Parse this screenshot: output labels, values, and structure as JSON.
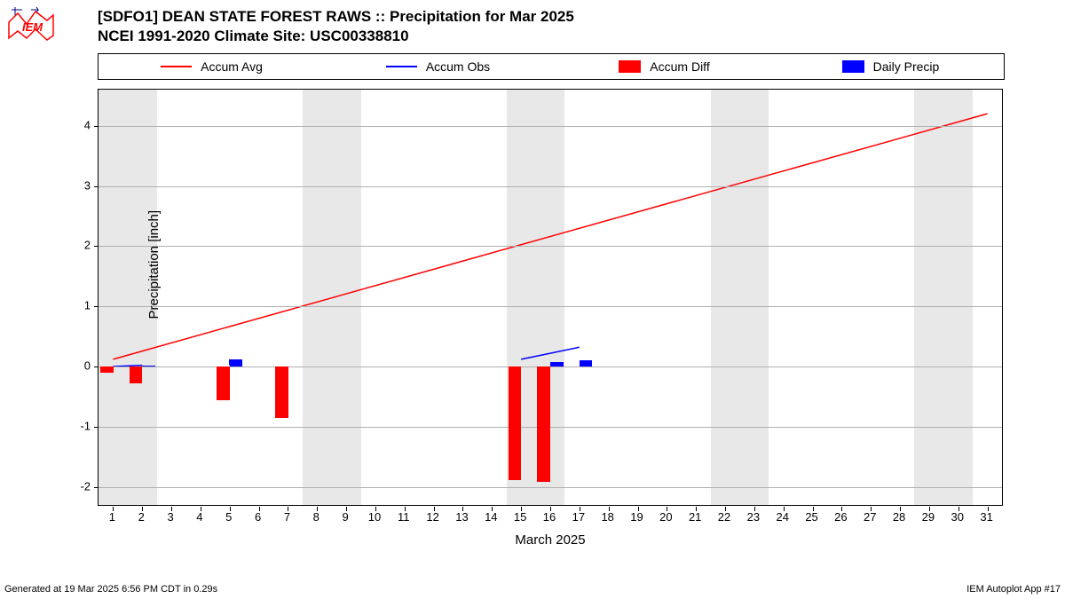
{
  "title_line1": "[SDFO1] DEAN STATE FOREST RAWS :: Precipitation for Mar 2025",
  "title_line2": "NCEI 1991-2020 Climate Site: USC00338810",
  "footer_left": "Generated at 19 Mar 2025 6:56 PM CDT in 0.29s",
  "footer_right": "IEM Autoplot App #17",
  "ylabel": "Precipitation [inch]",
  "xlabel": "March 2025",
  "legend": {
    "items": [
      {
        "label": "Accum Avg",
        "type": "line",
        "color": "#ff0000"
      },
      {
        "label": "Accum Obs",
        "type": "line",
        "color": "#0000ff"
      },
      {
        "label": "Accum Diff",
        "type": "box",
        "color": "#ff0000"
      },
      {
        "label": "Daily Precip",
        "type": "box",
        "color": "#0000ff"
      }
    ]
  },
  "chart": {
    "type": "mixed",
    "xlim": [
      0.5,
      31.5
    ],
    "ylim": [
      -2.3,
      4.6
    ],
    "yticks": [
      -2,
      -1,
      0,
      1,
      2,
      3,
      4
    ],
    "xticks": [
      1,
      2,
      3,
      4,
      5,
      6,
      7,
      8,
      9,
      10,
      11,
      12,
      13,
      14,
      15,
      16,
      17,
      18,
      19,
      20,
      21,
      22,
      23,
      24,
      25,
      26,
      27,
      28,
      29,
      30,
      31
    ],
    "weekend_bands": [
      [
        1,
        2
      ],
      [
        8,
        9
      ],
      [
        15,
        16
      ],
      [
        22,
        23
      ],
      [
        29,
        30
      ]
    ],
    "grid_color": "#b0b0b0",
    "weekend_color": "#e8e8e8",
    "accum_avg": {
      "color": "#ff0000",
      "line_width": 1.5,
      "points": [
        [
          1,
          0.12
        ],
        [
          31,
          4.2
        ]
      ]
    },
    "accum_obs": {
      "color": "#0000ff",
      "line_width": 1.5,
      "segments": [
        [
          [
            1,
            0.0
          ],
          [
            2,
            0.02
          ]
        ],
        [
          [
            5,
            0.02
          ],
          [
            5,
            0.12
          ]
        ],
        [
          [
            15,
            0.12
          ],
          [
            16,
            0.22
          ],
          [
            17,
            0.32
          ]
        ]
      ]
    },
    "accum_diff_bars": {
      "color": "#ff0000",
      "bar_width": 0.45,
      "data": [
        {
          "x": 1,
          "y": -0.1
        },
        {
          "x": 2,
          "y": -0.28
        },
        {
          "x": 5,
          "y": -0.56
        },
        {
          "x": 7,
          "y": -0.85
        },
        {
          "x": 15,
          "y": -1.88
        },
        {
          "x": 16,
          "y": -1.92
        }
      ]
    },
    "daily_precip_bars": {
      "color": "#0000ff",
      "bar_width": 0.45,
      "data": [
        {
          "x": 2,
          "y": 0.02
        },
        {
          "x": 5,
          "y": 0.12
        },
        {
          "x": 16,
          "y": 0.08
        },
        {
          "x": 17,
          "y": 0.1
        }
      ]
    }
  },
  "colors": {
    "red": "#ff0000",
    "blue": "#0000ff",
    "grid": "#b0b0b0",
    "weekend": "#e8e8e8",
    "text": "#000000"
  },
  "logo": {
    "text": "IEM",
    "stroke": "#ff0000"
  }
}
